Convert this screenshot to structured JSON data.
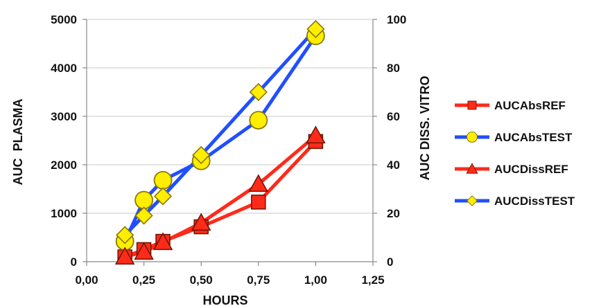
{
  "chart_data": {
    "type": "line",
    "title": "",
    "xlabel": "HOURS",
    "ylabel": "AUC  PLASMA",
    "y2label": "AUC DISS. VITRO",
    "xlim": [
      0,
      1.25
    ],
    "ylim": [
      0,
      5000
    ],
    "y2lim": [
      0,
      100
    ],
    "xticks": [
      "0,00",
      "0,25",
      "0,50",
      "0,75",
      "1,00",
      "1,25"
    ],
    "xtick_values": [
      0,
      0.25,
      0.5,
      0.75,
      1.0,
      1.25
    ],
    "yticks": [
      "0",
      "1000",
      "2000",
      "3000",
      "4000",
      "5000"
    ],
    "ytick_values": [
      0,
      1000,
      2000,
      3000,
      4000,
      5000
    ],
    "y2ticks": [
      "0",
      "20",
      "40",
      "60",
      "80",
      "100"
    ],
    "y2tick_values": [
      0,
      20,
      40,
      60,
      80,
      100
    ],
    "grid": "horizontal",
    "legend_position": "right",
    "series": [
      {
        "name": "AUCAbsREF",
        "color": "#ff2a1a",
        "marker": "square",
        "axis": "left",
        "x": [
          0.167,
          0.25,
          0.333,
          0.5,
          0.75,
          1.0
        ],
        "y": [
          100,
          250,
          420,
          720,
          1230,
          2480
        ]
      },
      {
        "name": "AUCAbsTEST",
        "color": "#1f4fff",
        "marker": "circle",
        "axis": "left",
        "x": [
          0.167,
          0.25,
          0.333,
          0.5,
          0.75,
          1.0
        ],
        "y": [
          420,
          1270,
          1680,
          2080,
          2920,
          4660
        ]
      },
      {
        "name": "AUCDissREF",
        "color": "#ff2a1a",
        "marker": "triangle",
        "axis": "right",
        "x": [
          0.167,
          0.25,
          0.333,
          0.5,
          0.75,
          1.0
        ],
        "y": [
          2,
          4,
          8,
          16,
          32,
          52
        ]
      },
      {
        "name": "AUCDissTEST",
        "color": "#1f4fff",
        "marker": "diamond",
        "axis": "right",
        "x": [
          0.167,
          0.25,
          0.333,
          0.5,
          0.75,
          1.0
        ],
        "y": [
          11,
          19,
          27,
          44,
          70,
          96
        ]
      }
    ]
  }
}
